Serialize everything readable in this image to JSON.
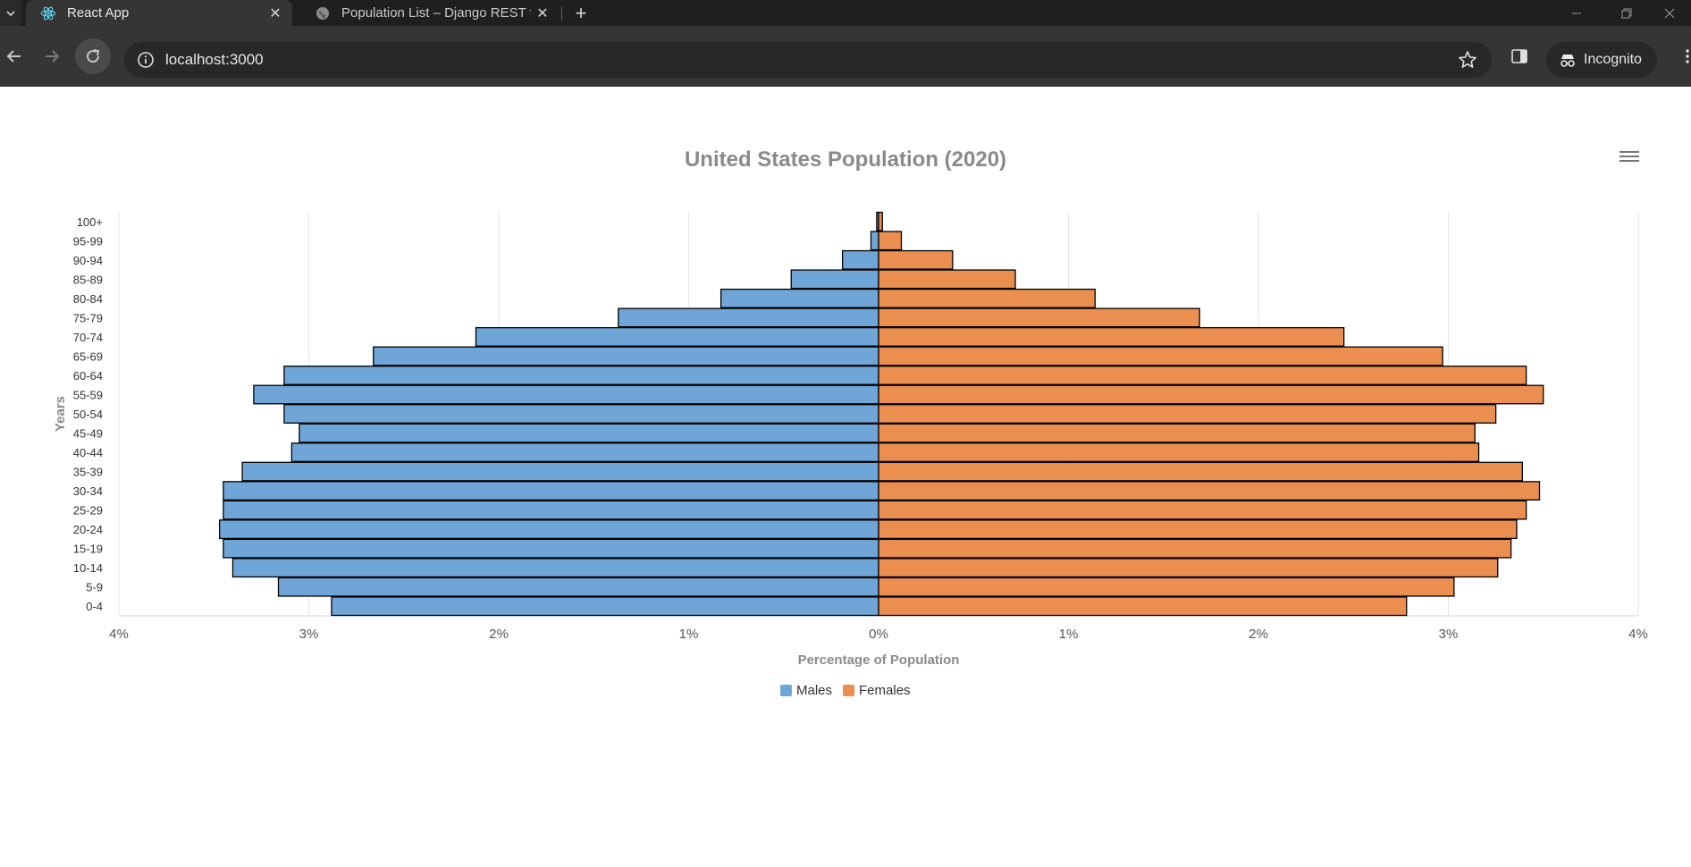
{
  "browser": {
    "tabs": [
      {
        "title": "React App",
        "active": true,
        "icon": "react-icon"
      },
      {
        "title": "Population List – Django REST f",
        "active": false,
        "icon": "globe-icon"
      }
    ],
    "url": "localhost:3000",
    "incognito_label": "Incognito"
  },
  "colors": {
    "males": "#6fa5d7",
    "females": "#ea8f4f"
  },
  "chart_data": {
    "type": "bar",
    "title": "United States Population (2020)",
    "xlabel": "Percentage of Population",
    "ylabel": "Years",
    "xlim": [
      -4,
      4
    ],
    "x_ticks": [
      "4%",
      "3%",
      "2%",
      "1%",
      "0%",
      "1%",
      "2%",
      "3%",
      "4%"
    ],
    "categories": [
      "100+",
      "95-99",
      "90-94",
      "85-89",
      "80-84",
      "75-79",
      "70-74",
      "65-69",
      "60-64",
      "55-59",
      "50-54",
      "45-49",
      "40-44",
      "35-39",
      "30-34",
      "25-29",
      "20-24",
      "15-19",
      "10-14",
      "5-9",
      "0-4"
    ],
    "series": [
      {
        "name": "Males",
        "values": [
          -0.01,
          -0.04,
          -0.19,
          -0.46,
          -0.83,
          -1.37,
          -2.12,
          -2.66,
          -3.13,
          -3.29,
          -3.13,
          -3.05,
          -3.09,
          -3.35,
          -3.45,
          -3.45,
          -3.47,
          -3.45,
          -3.4,
          -3.16,
          -2.88
        ]
      },
      {
        "name": "Females",
        "values": [
          0.02,
          0.12,
          0.39,
          0.72,
          1.14,
          1.69,
          2.45,
          2.97,
          3.41,
          3.5,
          3.25,
          3.14,
          3.16,
          3.39,
          3.48,
          3.41,
          3.36,
          3.33,
          3.26,
          3.03,
          2.78
        ]
      }
    ],
    "legend": [
      "Males",
      "Females"
    ],
    "legend_position": "bottom-center",
    "grid": true
  }
}
